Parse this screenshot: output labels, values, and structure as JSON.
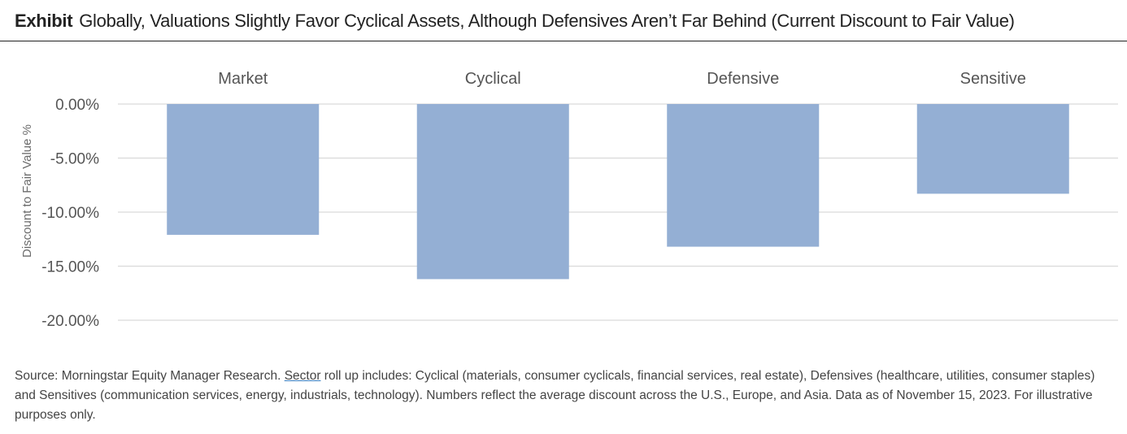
{
  "header": {
    "exhibit_label": "Exhibit",
    "title": "Globally, Valuations Slightly Favor Cyclical Assets, Although Defensives Aren’t Far Behind (Current Discount to Fair Value)"
  },
  "chart_data": {
    "type": "bar",
    "categories": [
      "Market",
      "Cyclical",
      "Defensive",
      "Sensitive"
    ],
    "values": [
      -12.1,
      -16.2,
      -13.2,
      -8.3
    ],
    "ylabel": "Discount to Fair Value %",
    "ylim": [
      -20,
      0
    ],
    "yticks": [
      0,
      -5,
      -10,
      -15,
      -20
    ],
    "ytick_labels": [
      "0.00%",
      "-5.00%",
      "-10.00%",
      "-15.00%",
      "-20.00%"
    ],
    "category_labels_position": "top",
    "grid": true,
    "bar_color": "#94afd4",
    "grid_color": "#d9d9d9"
  },
  "footer": {
    "source_prefix": "Source: Morningstar Equity Manager Research. ",
    "source_link": "Sector",
    "source_suffix": " roll up includes: Cyclical (materials, consumer cyclicals, financial services, real estate), Defensives (healthcare, utilities, consumer staples) and Sensitives (communication services, energy, industrials, technology). Numbers reflect the average discount across the U.S., Europe, and Asia. Data as of November 15, 2023. For illustrative purposes only."
  }
}
